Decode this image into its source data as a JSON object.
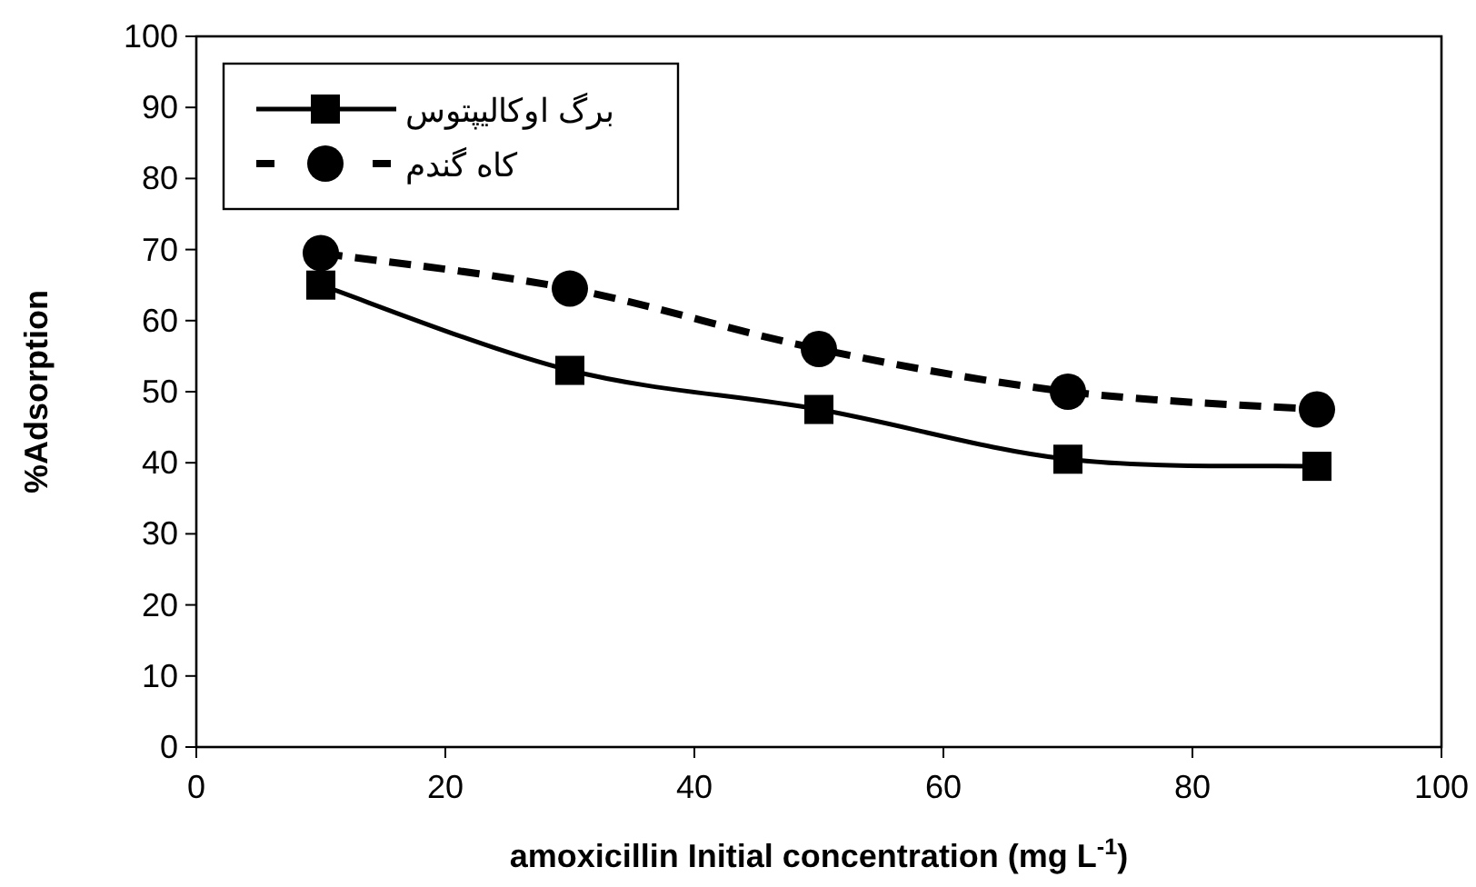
{
  "chart_data": {
    "type": "line",
    "xlabel": "amoxicillin Initial concentration (mg L$^{-1}$)",
    "ylabel": "%Adsorption",
    "x": [
      10,
      30,
      50,
      70,
      90
    ],
    "series": [
      {
        "name": "برگ اوکالیپتوس",
        "color": "#000000",
        "marker": "square",
        "line_style": "solid",
        "values": [
          65,
          53,
          47.5,
          40.5,
          39.5
        ]
      },
      {
        "name": "کاه گندم",
        "color": "#000000",
        "marker": "circle",
        "line_style": "dashed",
        "values": [
          69.5,
          64.5,
          56,
          50,
          47.5
        ]
      }
    ],
    "xlim": [
      0,
      100
    ],
    "xticks": [
      0,
      20,
      40,
      60,
      80,
      100
    ],
    "ylim": [
      0,
      100
    ],
    "yticks": [
      0,
      10,
      20,
      30,
      40,
      50,
      60,
      70,
      80,
      90,
      100
    ],
    "grid": false,
    "legend": "top left"
  }
}
